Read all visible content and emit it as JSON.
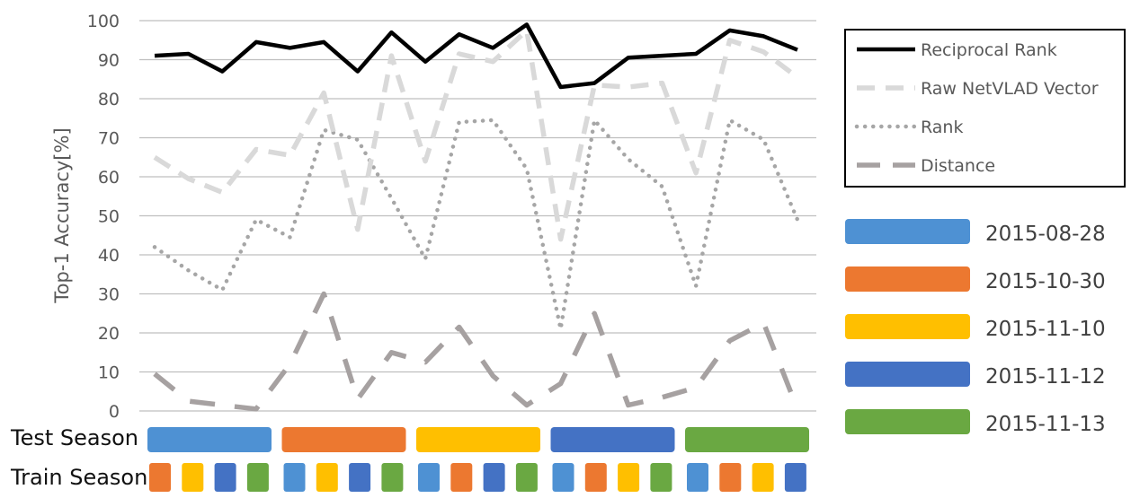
{
  "chart_data": {
    "type": "line",
    "ylabel": "Top-1 Accuracy[%]",
    "ylim": [
      0,
      100
    ],
    "yticks": [
      "0",
      "10",
      "20",
      "30",
      "40",
      "50",
      "60",
      "70",
      "80",
      "90",
      "100"
    ],
    "grid": true,
    "legend_position": "top-right",
    "series": [
      {
        "name": "Reciprocal Rank",
        "color": "#000000",
        "style": "solid",
        "values": [
          91,
          91.5,
          87,
          94.5,
          93,
          94.5,
          87,
          97,
          89.5,
          96.5,
          93,
          99,
          83,
          84,
          90.5,
          91,
          91.5,
          97.5,
          96,
          92.5
        ]
      },
      {
        "name": "Raw NetVLAD Vector",
        "color": "#d9d9d9",
        "style": "dashed",
        "values": [
          65,
          59.5,
          56,
          67,
          65.5,
          81.5,
          46.5,
          91,
          64,
          91.5,
          89.5,
          97.5,
          44,
          83.5,
          83,
          84,
          61,
          95,
          92,
          85.5
        ]
      },
      {
        "name": "Rank",
        "color": "#a6a6a6",
        "style": "dotted",
        "values": [
          42,
          36,
          31,
          49,
          44.5,
          72,
          69.5,
          54.5,
          39,
          74,
          74.5,
          62,
          21,
          74.5,
          64.5,
          57.5,
          32,
          74.5,
          69.5,
          49
        ]
      },
      {
        "name": "Distance",
        "color": "#a6a1a1",
        "style": "longdash",
        "values": [
          9.5,
          2.5,
          1.5,
          0.5,
          12,
          30,
          3,
          15,
          12.5,
          21.5,
          9,
          1.5,
          7,
          25,
          1.5,
          3.5,
          6,
          18,
          22.5,
          0.5
        ]
      }
    ]
  },
  "seasons": {
    "test_label": "Test Season",
    "train_label": "Train Season",
    "legend": [
      {
        "label": "2015-08-28",
        "color": "#4e91d3"
      },
      {
        "label": "2015-10-30",
        "color": "#ec7830"
      },
      {
        "label": "2015-11-10",
        "color": "#ffbf00"
      },
      {
        "label": "2015-11-12",
        "color": "#4472c4"
      },
      {
        "label": "2015-11-13",
        "color": "#6aa842"
      }
    ],
    "test": [
      0,
      1,
      2,
      3,
      4
    ],
    "train": [
      [
        1,
        2,
        3,
        4
      ],
      [
        0,
        2,
        3,
        4
      ],
      [
        0,
        1,
        3,
        4
      ],
      [
        0,
        1,
        2,
        4
      ],
      [
        0,
        1,
        2,
        3
      ]
    ]
  }
}
